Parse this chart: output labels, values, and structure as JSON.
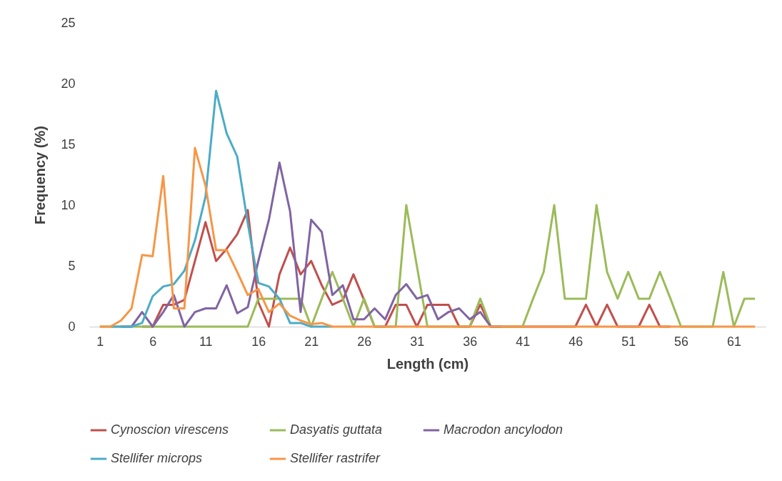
{
  "chart_data": {
    "type": "line",
    "xlabel": "Length (cm)",
    "ylabel": "Frequency (%)",
    "x": [
      1,
      2,
      3,
      4,
      5,
      6,
      7,
      8,
      9,
      10,
      11,
      12,
      13,
      14,
      15,
      16,
      17,
      18,
      19,
      20,
      21,
      22,
      23,
      24,
      25,
      26,
      27,
      28,
      29,
      30,
      31,
      32,
      33,
      34,
      35,
      36,
      37,
      38,
      39,
      40,
      41,
      42,
      43,
      44,
      45,
      46,
      47,
      48,
      49,
      50,
      51,
      52,
      53,
      54,
      55,
      56,
      57,
      58,
      59,
      60,
      61,
      62,
      63
    ],
    "xlim": [
      0,
      64
    ],
    "xticks": [
      1,
      6,
      11,
      16,
      21,
      26,
      31,
      36,
      41,
      46,
      51,
      56,
      61
    ],
    "ylim": [
      0,
      25
    ],
    "yticks": [
      0,
      5,
      10,
      15,
      20,
      25
    ],
    "grid": false,
    "legend": "bottom",
    "series": [
      {
        "name": "Cynoscion virescens",
        "color": "#c0504d",
        "values": [
          null,
          null,
          null,
          null,
          0,
          0,
          1.8,
          1.8,
          2.2,
          5.4,
          8.6,
          5.4,
          6.4,
          7.6,
          9.6,
          2.0,
          0,
          4.3,
          6.5,
          4.3,
          5.4,
          3.4,
          1.8,
          2.2,
          4.3,
          2.2,
          0,
          0,
          1.8,
          1.8,
          0,
          1.8,
          1.8,
          1.8,
          0,
          0,
          1.8,
          0,
          0,
          0,
          0,
          0,
          0,
          0,
          0,
          0,
          1.8,
          0,
          1.8,
          0,
          0,
          0,
          1.8,
          0,
          0,
          null,
          null,
          null,
          null,
          null,
          null,
          null,
          null
        ]
      },
      {
        "name": "Dasyatis guttata",
        "color": "#9bbb59",
        "values": [
          0,
          0,
          0,
          0,
          0,
          0,
          0,
          0,
          0,
          0,
          0,
          0,
          0,
          0,
          0,
          2.3,
          2.3,
          2.3,
          2.3,
          2.3,
          0,
          2.3,
          4.5,
          2.3,
          0,
          2.3,
          0,
          0,
          0,
          10,
          5,
          0,
          0,
          0,
          0,
          0,
          2.3,
          0,
          0,
          0,
          0,
          2.3,
          4.5,
          10,
          2.3,
          2.3,
          2.3,
          10,
          4.5,
          2.3,
          4.5,
          2.3,
          2.3,
          4.5,
          2.3,
          0,
          0,
          0,
          0,
          4.5,
          0,
          2.3,
          2.3
        ]
      },
      {
        "name": "Macrodon ancylodon",
        "color": "#8064a2",
        "values": [
          null,
          null,
          0,
          0,
          1.2,
          0,
          1.2,
          2.6,
          0,
          1.2,
          1.5,
          1.5,
          3.4,
          1.1,
          1.6,
          5.4,
          8.8,
          13.5,
          9.5,
          1.2,
          8.8,
          7.8,
          2.6,
          3.4,
          0.6,
          0.6,
          1.5,
          0.6,
          2.6,
          3.5,
          2.3,
          2.6,
          0.6,
          1.2,
          1.5,
          0.6,
          1.2,
          0,
          0,
          null,
          null,
          null,
          null,
          null,
          null,
          null,
          null,
          null,
          null,
          null,
          null,
          null,
          null,
          null,
          null,
          null,
          null,
          null,
          null,
          null,
          null,
          null,
          null
        ]
      },
      {
        "name": "Stellifer microps",
        "color": "#4bacc6",
        "values": [
          null,
          0,
          0,
          0,
          0.3,
          2.5,
          3.3,
          3.5,
          4.6,
          7.1,
          10.7,
          19.4,
          15.9,
          14.0,
          8.5,
          3.6,
          3.3,
          2.3,
          0.3,
          0.3,
          0,
          0,
          0,
          null,
          null,
          null,
          null,
          null,
          null,
          null,
          null,
          null,
          null,
          null,
          null,
          null,
          null,
          null,
          null,
          null,
          null,
          null,
          null,
          null,
          null,
          null,
          null,
          null,
          null,
          null,
          null,
          null,
          null,
          null,
          null,
          null,
          null,
          null,
          null,
          null,
          null,
          null,
          null
        ]
      },
      {
        "name": "Stellifer rastrifer",
        "color": "#f79646",
        "values": [
          0,
          0,
          0.5,
          1.5,
          5.9,
          5.8,
          12.4,
          1.5,
          1.5,
          14.7,
          11.6,
          6.3,
          6.3,
          4.5,
          2.6,
          3.1,
          1.2,
          1.9,
          0.9,
          0.5,
          0.2,
          0.3,
          0,
          0,
          0,
          0,
          0,
          0,
          0,
          0,
          0,
          0,
          0,
          0,
          0,
          0,
          0,
          0,
          0,
          0,
          0,
          0,
          0,
          0,
          0,
          0,
          0,
          0,
          0,
          0,
          0,
          0,
          0,
          0,
          0,
          0,
          0,
          0,
          0,
          0,
          0,
          0,
          0
        ]
      }
    ]
  }
}
